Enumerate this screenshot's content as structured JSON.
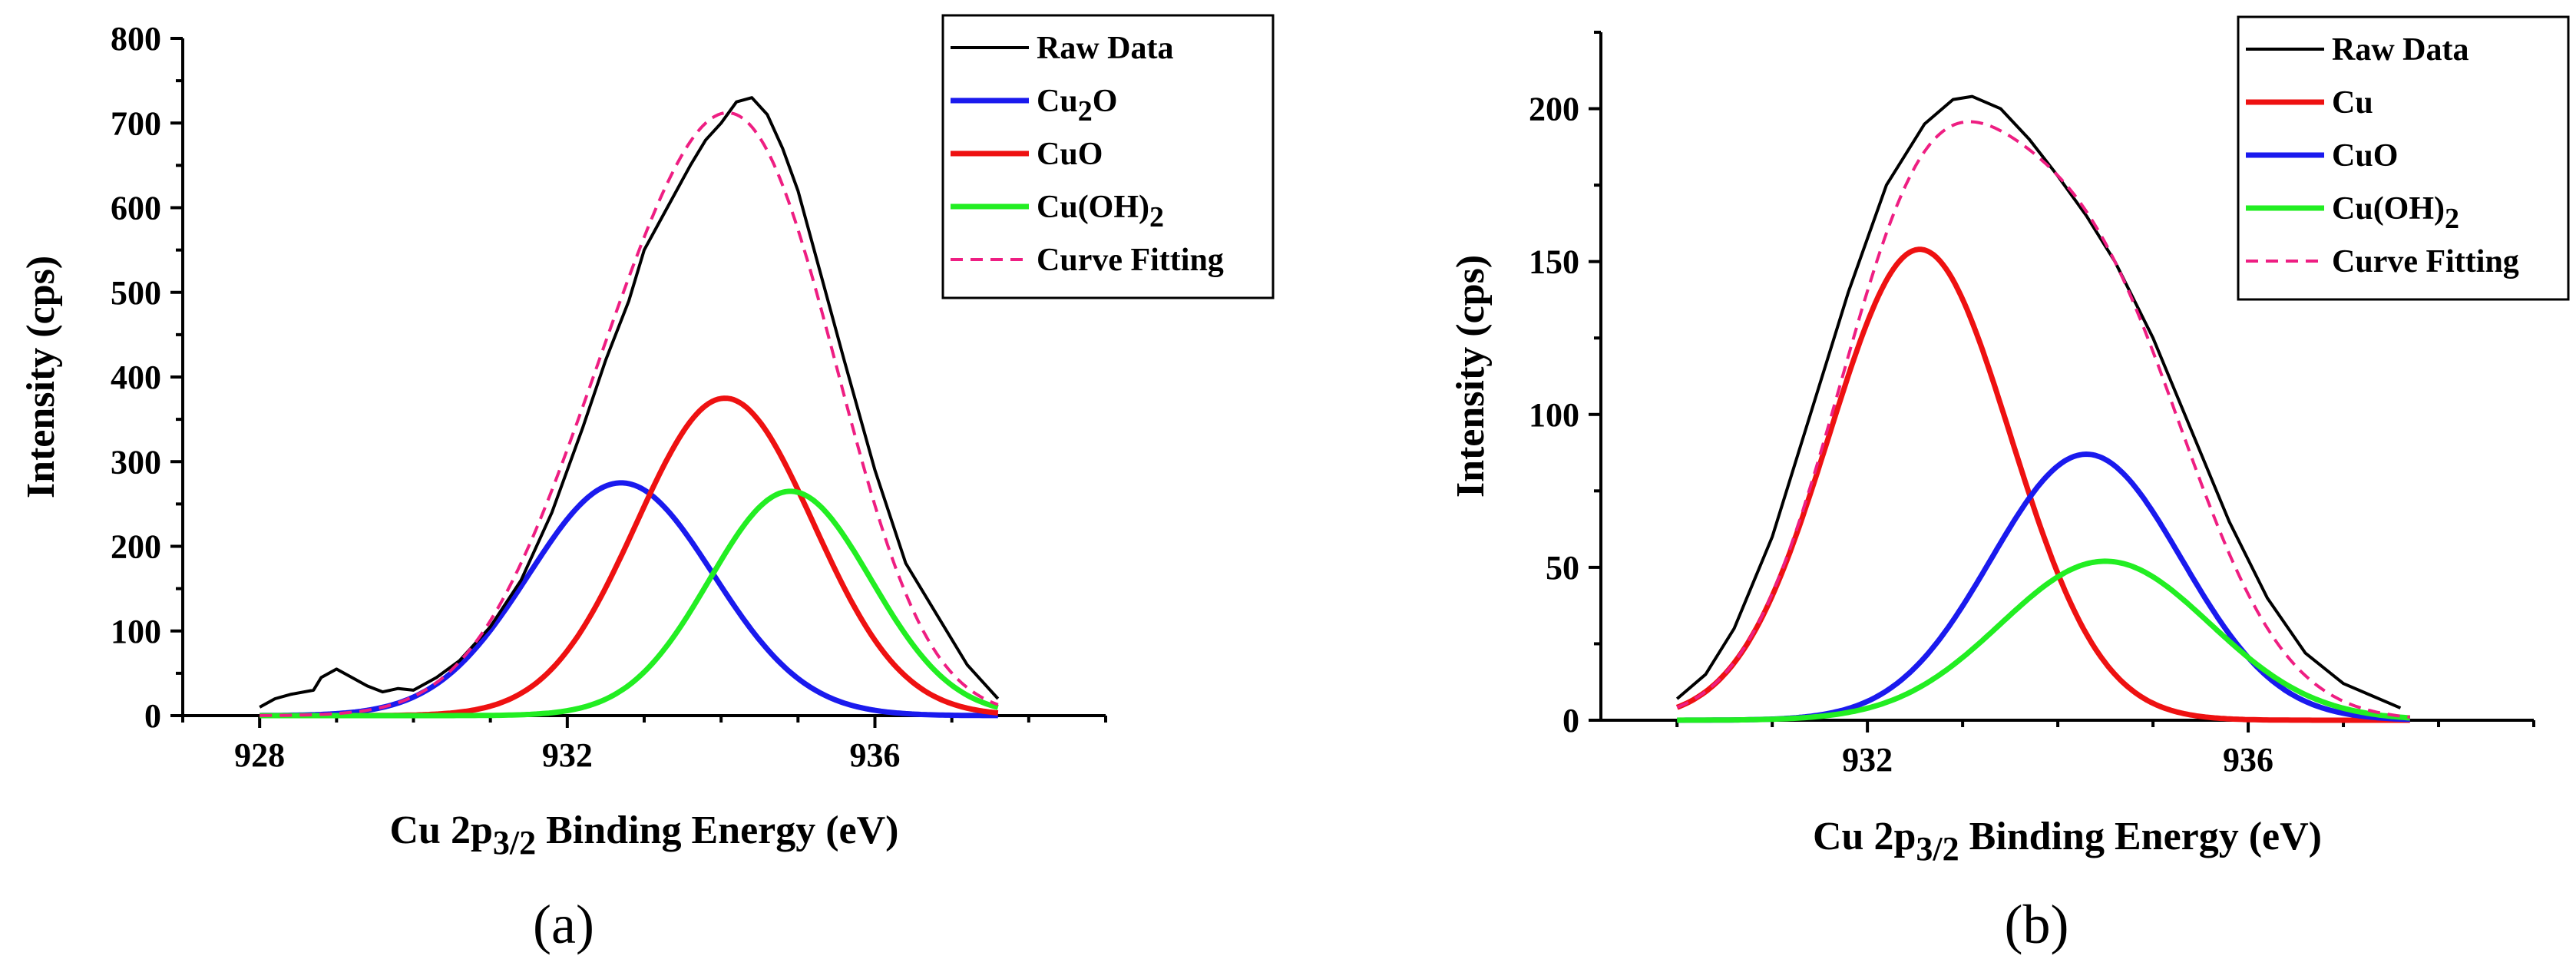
{
  "chart_data": [
    {
      "type": "line",
      "panel_label": "(a)",
      "xlabel": "Cu 2p3/2 Binding Energy (eV)",
      "xlabel_parts": {
        "main": "Cu 2p",
        "sub": "3/2",
        "tail": " Binding Energy (eV)"
      },
      "ylabel": "Intensity (cps)",
      "xlim": [
        927,
        939
      ],
      "ylim": [
        0,
        800
      ],
      "xticks": [
        928,
        932,
        936
      ],
      "yticks": [
        0,
        100,
        200,
        300,
        400,
        500,
        600,
        700,
        800
      ],
      "legend_position": "top-right",
      "series": [
        {
          "name": "Raw Data",
          "label_main": "Raw Data",
          "label_sub": "",
          "label_tail": "",
          "color": "#000000",
          "style": "solid",
          "width": 4,
          "x": [
            928.0,
            928.2,
            928.4,
            928.7,
            928.8,
            929.0,
            929.2,
            929.4,
            929.6,
            929.8,
            930.0,
            930.3,
            930.6,
            931.0,
            931.4,
            931.8,
            932.2,
            932.5,
            932.8,
            933.0,
            933.3,
            933.6,
            933.8,
            934.0,
            934.2,
            934.4,
            934.6,
            934.8,
            935.0,
            935.3,
            935.6,
            936.0,
            936.4,
            936.8,
            937.2,
            937.6
          ],
          "y": [
            10,
            20,
            25,
            30,
            45,
            55,
            45,
            35,
            28,
            32,
            30,
            45,
            65,
            105,
            160,
            240,
            340,
            420,
            490,
            550,
            600,
            650,
            680,
            700,
            725,
            730,
            710,
            670,
            620,
            520,
            420,
            290,
            180,
            120,
            60,
            20
          ]
        },
        {
          "name": "Cu2O",
          "label_main": "Cu",
          "label_sub": "2",
          "label_tail": "O",
          "color": "#1a1aee",
          "style": "solid",
          "width": 7,
          "model": {
            "amp": 275,
            "center": 932.7,
            "sigma": 1.2
          },
          "range": [
            928.0,
            937.6
          ]
        },
        {
          "name": "CuO",
          "label_main": "CuO",
          "label_sub": "",
          "label_tail": "",
          "color": "#ee1111",
          "style": "solid",
          "width": 7,
          "model": {
            "amp": 375,
            "center": 934.05,
            "sigma": 1.15
          },
          "range": [
            928.0,
            937.6
          ]
        },
        {
          "name": "Cu(OH)2",
          "label_main": "Cu(OH)",
          "label_sub": "2",
          "label_tail": "",
          "color": "#22ee22",
          "style": "solid",
          "width": 7,
          "model": {
            "amp": 265,
            "center": 934.9,
            "sigma": 1.05
          },
          "range": [
            928.0,
            937.6
          ]
        },
        {
          "name": "Curve Fitting",
          "label_main": "Curve Fitting",
          "label_sub": "",
          "label_tail": "",
          "color": "#ee1e82",
          "style": "dashed",
          "width": 4,
          "sum_of": [
            "Cu2O",
            "CuO",
            "Cu(OH)2"
          ],
          "range": [
            928.0,
            937.6
          ]
        }
      ]
    },
    {
      "type": "line",
      "panel_label": "(b)",
      "xlabel": "Cu 2p3/2 Binding Energy (eV)",
      "xlabel_parts": {
        "main": "Cu 2p",
        "sub": "3/2",
        "tail": " Binding Energy (eV)"
      },
      "ylabel": "Intensity (cps)",
      "xlim": [
        929.2,
        939.0
      ],
      "ylim": [
        0,
        225
      ],
      "xticks": [
        932,
        936
      ],
      "yticks": [
        0,
        50,
        100,
        150,
        200
      ],
      "legend_position": "top-right",
      "series": [
        {
          "name": "Raw Data",
          "label_main": "Raw Data",
          "label_sub": "",
          "label_tail": "",
          "color": "#000000",
          "style": "solid",
          "width": 4,
          "x": [
            930.0,
            930.3,
            930.6,
            931.0,
            931.4,
            931.8,
            932.2,
            932.6,
            932.9,
            933.1,
            933.4,
            933.7,
            934.0,
            934.3,
            934.6,
            935.0,
            935.4,
            935.8,
            936.2,
            936.6,
            937.0,
            937.3,
            937.6
          ],
          "y": [
            7,
            15,
            30,
            60,
            100,
            140,
            175,
            195,
            203,
            204,
            200,
            190,
            178,
            165,
            150,
            125,
            95,
            65,
            40,
            22,
            12,
            8,
            4
          ]
        },
        {
          "name": "Cu",
          "label_main": "Cu",
          "label_sub": "",
          "label_tail": "",
          "color": "#ee1111",
          "style": "solid",
          "width": 7,
          "model": {
            "amp": 154,
            "center": 932.55,
            "sigma": 0.95
          },
          "range": [
            930.0,
            937.7
          ]
        },
        {
          "name": "CuO",
          "label_main": "CuO",
          "label_sub": "",
          "label_tail": "",
          "color": "#1a1aee",
          "style": "solid",
          "width": 7,
          "model": {
            "amp": 87,
            "center": 934.3,
            "sigma": 1.0
          },
          "range": [
            930.0,
            937.7
          ]
        },
        {
          "name": "Cu(OH)2",
          "label_main": "Cu(OH)",
          "label_sub": "2",
          "label_tail": "",
          "color": "#22ee22",
          "style": "solid",
          "width": 7,
          "model": {
            "amp": 52,
            "center": 934.5,
            "sigma": 1.1
          },
          "range": [
            930.0,
            937.7
          ]
        },
        {
          "name": "Curve Fitting",
          "label_main": "Curve Fitting",
          "label_sub": "",
          "label_tail": "",
          "color": "#ee1e82",
          "style": "dashed",
          "width": 4,
          "sum_of": [
            "Cu",
            "CuO",
            "Cu(OH)2"
          ],
          "range": [
            930.0,
            937.7
          ]
        }
      ]
    }
  ]
}
